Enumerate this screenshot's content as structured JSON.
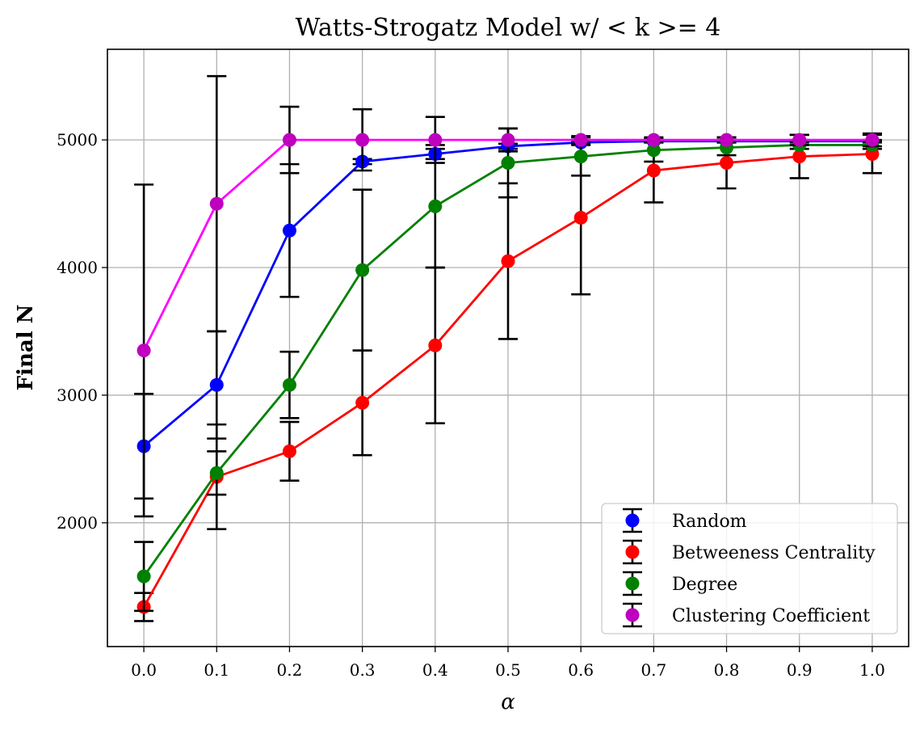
{
  "chart_data": {
    "type": "line",
    "title": "Watts-Strogatz Model w/ < k >= 4",
    "xlabel": "α",
    "ylabel": "Final N",
    "x": [
      0.0,
      0.1,
      0.2,
      0.3,
      0.4,
      0.5,
      0.6,
      0.7,
      0.8,
      0.9,
      1.0
    ],
    "xticks": [
      "0.0",
      "0.1",
      "0.2",
      "0.3",
      "0.4",
      "0.5",
      "0.6",
      "0.7",
      "0.8",
      "0.9",
      "1.0"
    ],
    "yticks": [
      2000,
      3000,
      4000,
      5000
    ],
    "ytick_labels": [
      "2000",
      "3000",
      "4000",
      "5000"
    ],
    "xlim": [
      -0.05,
      1.05
    ],
    "ylim": [
      1030,
      5710
    ],
    "grid": true,
    "legend_position": "bottom-right",
    "series": [
      {
        "name": "Random",
        "line_color": "#0000ff",
        "marker_color": "#0000ff",
        "values": [
          2600,
          3080,
          4290,
          4830,
          4890,
          4950,
          4980,
          4990,
          4990,
          4990,
          4990
        ],
        "errors": [
          410,
          420,
          520,
          20,
          40,
          20,
          20,
          10,
          10,
          10,
          10
        ]
      },
      {
        "name": "Betweeness Centrality",
        "line_color": "#ff0000",
        "marker_color": "#ff0000",
        "values": [
          1340,
          2360,
          2560,
          2940,
          3390,
          4050,
          4390,
          4760,
          4820,
          4870,
          4890
        ],
        "errors": [
          110,
          410,
          230,
          410,
          610,
          610,
          600,
          250,
          200,
          170,
          150
        ]
      },
      {
        "name": "Degree",
        "line_color": "#008000",
        "marker_color": "#008000",
        "values": [
          1580,
          2390,
          3080,
          3980,
          4480,
          4820,
          4870,
          4920,
          4940,
          4960,
          4960
        ],
        "errors": [
          270,
          170,
          260,
          630,
          480,
          270,
          150,
          90,
          60,
          30,
          30
        ]
      },
      {
        "name": "Clustering Coefficient",
        "line_color": "#ff00ff",
        "marker_color": "#bf00bf",
        "values": [
          3350,
          4500,
          5000,
          5000,
          5000,
          5000,
          5000,
          5000,
          5000,
          5000,
          5000
        ],
        "errors": [
          1300,
          1000,
          260,
          240,
          180,
          90,
          30,
          20,
          20,
          40,
          50
        ]
      }
    ]
  }
}
